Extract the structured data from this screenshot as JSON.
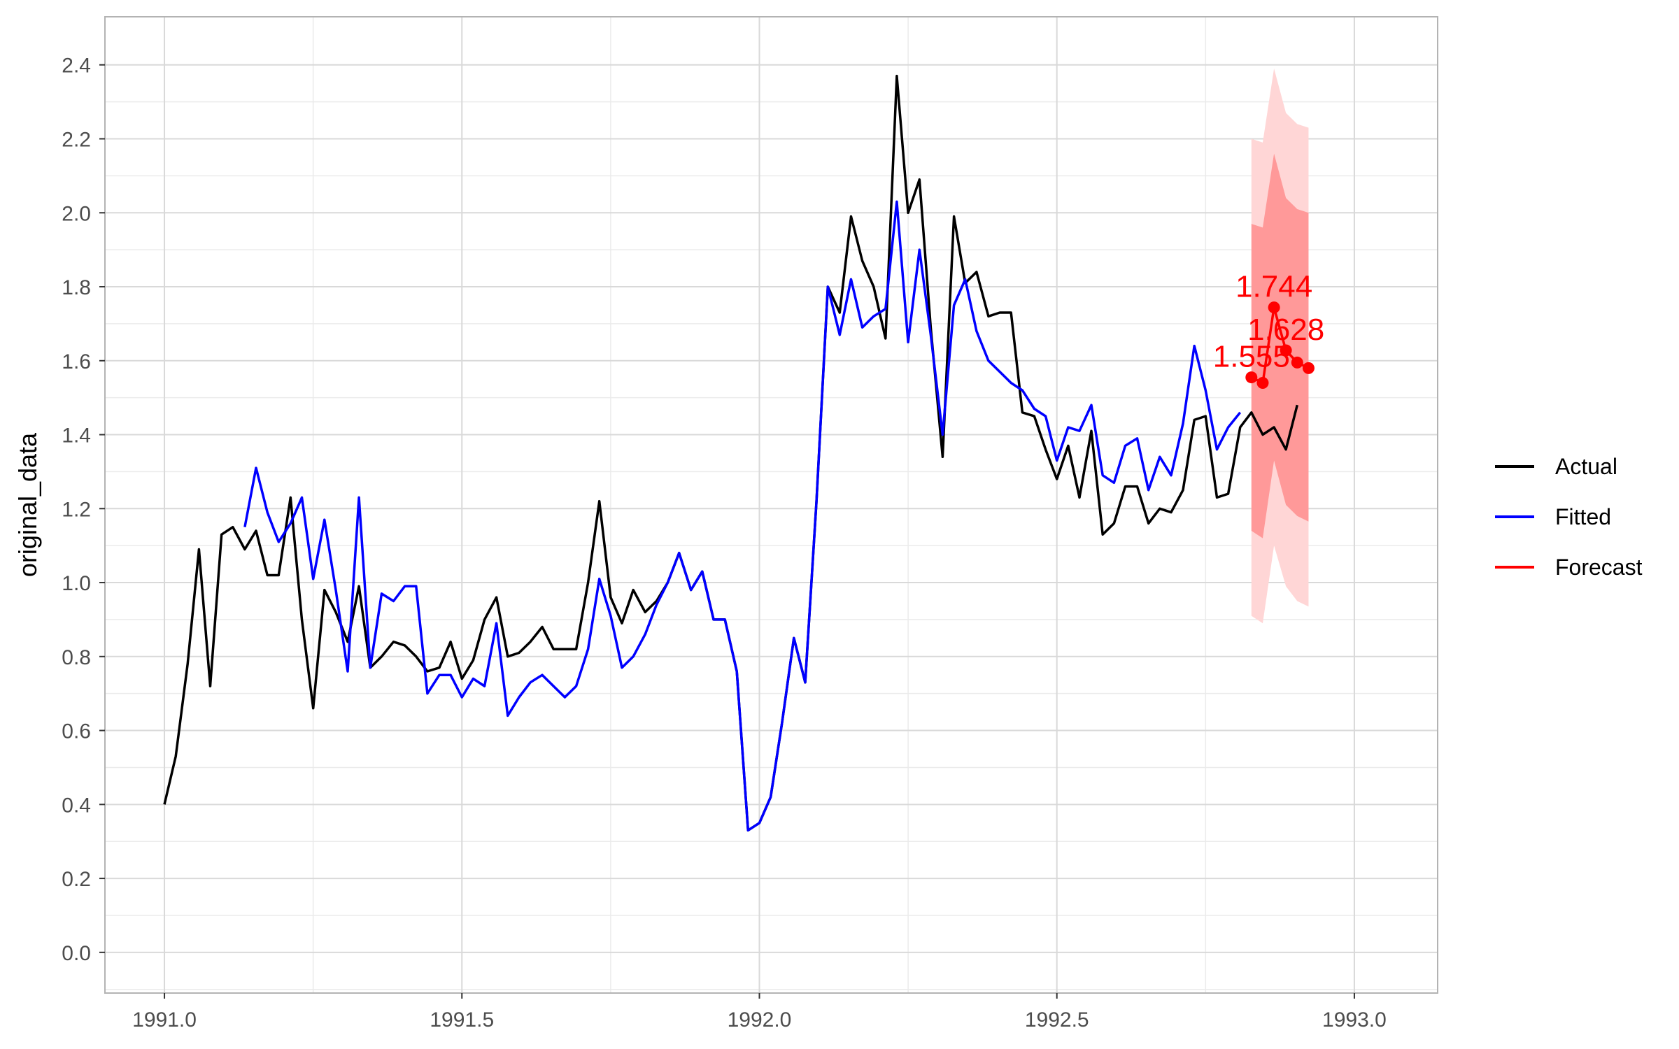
{
  "chart_data": {
    "type": "line",
    "title": "",
    "xlabel": "",
    "ylabel": "original_data",
    "xlim": [
      1990.9,
      1993.14
    ],
    "ylim": [
      -0.11,
      2.53
    ],
    "grid": true,
    "x_ticks": [
      1991.0,
      1991.5,
      1992.0,
      1992.5,
      1993.0
    ],
    "x_tick_labels": [
      "1991.0",
      "1991.5",
      "1992.0",
      "1992.5",
      "1993.0"
    ],
    "y_ticks": [
      0.0,
      0.2,
      0.4,
      0.6,
      0.8,
      1.0,
      1.2,
      1.4,
      1.6,
      1.8,
      2.0,
      2.2,
      2.4
    ],
    "y_tick_labels": [
      "0.0",
      "0.2",
      "0.4",
      "0.6",
      "0.8",
      "1.0",
      "1.2",
      "1.4",
      "1.6",
      "1.8",
      "2.0",
      "2.2",
      "2.4"
    ],
    "legend": {
      "position": "right",
      "entries": [
        {
          "name": "Actual",
          "color": "#000000"
        },
        {
          "name": "Fitted",
          "color": "#0000ff"
        },
        {
          "name": "Forecast",
          "color": "#ff0000"
        }
      ]
    },
    "colors": {
      "actual": "#000000",
      "fitted": "#0000ff",
      "forecast": "#ff0000",
      "ci80": "#ff9999",
      "ci95": "#ffd6d6"
    },
    "series": [
      {
        "name": "Actual",
        "points": [
          [
            1991.0,
            0.4
          ],
          [
            1991.019,
            0.53
          ],
          [
            1991.039,
            0.78
          ],
          [
            1991.058,
            1.09
          ],
          [
            1991.077,
            0.72
          ],
          [
            1991.096,
            1.13
          ],
          [
            1991.115,
            1.15
          ],
          [
            1991.135,
            1.09
          ],
          [
            1991.154,
            1.14
          ],
          [
            1991.173,
            1.02
          ],
          [
            1991.192,
            1.02
          ],
          [
            1991.212,
            1.23
          ],
          [
            1991.231,
            0.9
          ],
          [
            1991.25,
            0.66
          ],
          [
            1991.269,
            0.98
          ],
          [
            1991.288,
            0.92
          ],
          [
            1991.308,
            0.84
          ],
          [
            1991.327,
            0.99
          ],
          [
            1991.346,
            0.77
          ],
          [
            1991.365,
            0.8
          ],
          [
            1991.385,
            0.84
          ],
          [
            1991.404,
            0.83
          ],
          [
            1991.423,
            0.8
          ],
          [
            1991.442,
            0.76
          ],
          [
            1991.462,
            0.77
          ],
          [
            1991.481,
            0.84
          ],
          [
            1991.5,
            0.74
          ],
          [
            1991.519,
            0.79
          ],
          [
            1991.538,
            0.9
          ],
          [
            1991.558,
            0.96
          ],
          [
            1991.577,
            0.8
          ],
          [
            1991.596,
            0.81
          ],
          [
            1991.615,
            0.84
          ],
          [
            1991.635,
            0.88
          ],
          [
            1991.654,
            0.82
          ],
          [
            1991.673,
            0.82
          ],
          [
            1991.692,
            0.82
          ],
          [
            1991.712,
            1.0
          ],
          [
            1991.731,
            1.22
          ],
          [
            1991.75,
            0.96
          ],
          [
            1991.769,
            0.89
          ],
          [
            1991.788,
            0.98
          ],
          [
            1991.808,
            0.92
          ],
          [
            1991.827,
            0.95
          ],
          [
            1991.846,
            1.0
          ],
          [
            1991.865,
            1.08
          ],
          [
            1991.885,
            0.98
          ],
          [
            1991.904,
            1.03
          ],
          [
            1991.923,
            0.9
          ],
          [
            1991.942,
            0.9
          ],
          [
            1991.962,
            0.76
          ],
          [
            1991.981,
            0.33
          ],
          [
            1992.0,
            0.35
          ],
          [
            1992.019,
            0.42
          ],
          [
            1992.038,
            0.62
          ],
          [
            1992.058,
            0.85
          ],
          [
            1992.077,
            0.73
          ],
          [
            1992.096,
            1.22
          ],
          [
            1992.115,
            1.8
          ],
          [
            1992.135,
            1.73
          ],
          [
            1992.154,
            1.99
          ],
          [
            1992.173,
            1.87
          ],
          [
            1992.192,
            1.8
          ],
          [
            1992.212,
            1.66
          ],
          [
            1992.231,
            2.37
          ],
          [
            1992.25,
            2.0
          ],
          [
            1992.269,
            2.09
          ],
          [
            1992.288,
            1.69
          ],
          [
            1992.308,
            1.34
          ],
          [
            1992.327,
            1.99
          ],
          [
            1992.346,
            1.81
          ],
          [
            1992.365,
            1.84
          ],
          [
            1992.385,
            1.72
          ],
          [
            1992.404,
            1.73
          ],
          [
            1992.423,
            1.73
          ],
          [
            1992.442,
            1.46
          ],
          [
            1992.462,
            1.45
          ],
          [
            1992.481,
            1.36
          ],
          [
            1992.5,
            1.28
          ],
          [
            1992.519,
            1.37
          ],
          [
            1992.538,
            1.23
          ],
          [
            1992.558,
            1.41
          ],
          [
            1992.577,
            1.13
          ],
          [
            1992.596,
            1.16
          ],
          [
            1992.615,
            1.26
          ],
          [
            1992.635,
            1.26
          ],
          [
            1992.654,
            1.16
          ],
          [
            1992.673,
            1.2
          ],
          [
            1992.692,
            1.19
          ],
          [
            1992.712,
            1.25
          ],
          [
            1992.731,
            1.44
          ],
          [
            1992.75,
            1.45
          ],
          [
            1992.769,
            1.23
          ],
          [
            1992.788,
            1.24
          ],
          [
            1992.808,
            1.42
          ],
          [
            1992.827,
            1.46
          ],
          [
            1992.846,
            1.4
          ],
          [
            1992.865,
            1.42
          ],
          [
            1992.885,
            1.36
          ],
          [
            1992.904,
            1.48
          ]
        ]
      },
      {
        "name": "Fitted",
        "points": [
          [
            1991.135,
            1.15
          ],
          [
            1991.154,
            1.31
          ],
          [
            1991.173,
            1.19
          ],
          [
            1991.192,
            1.11
          ],
          [
            1991.212,
            1.16
          ],
          [
            1991.231,
            1.23
          ],
          [
            1991.25,
            1.01
          ],
          [
            1991.269,
            1.17
          ],
          [
            1991.288,
            0.98
          ],
          [
            1991.308,
            0.76
          ],
          [
            1991.327,
            1.23
          ],
          [
            1991.346,
            0.77
          ],
          [
            1991.365,
            0.97
          ],
          [
            1991.385,
            0.95
          ],
          [
            1991.404,
            0.99
          ],
          [
            1991.423,
            0.99
          ],
          [
            1991.442,
            0.7
          ],
          [
            1991.462,
            0.75
          ],
          [
            1991.481,
            0.75
          ],
          [
            1991.5,
            0.69
          ],
          [
            1991.519,
            0.74
          ],
          [
            1991.538,
            0.72
          ],
          [
            1991.558,
            0.89
          ],
          [
            1991.577,
            0.64
          ],
          [
            1991.596,
            0.69
          ],
          [
            1991.615,
            0.73
          ],
          [
            1991.635,
            0.75
          ],
          [
            1991.654,
            0.72
          ],
          [
            1991.673,
            0.69
          ],
          [
            1991.692,
            0.72
          ],
          [
            1991.712,
            0.82
          ],
          [
            1991.731,
            1.01
          ],
          [
            1991.75,
            0.91
          ],
          [
            1991.769,
            0.77
          ],
          [
            1991.788,
            0.8
          ],
          [
            1991.808,
            0.86
          ],
          [
            1991.827,
            0.94
          ],
          [
            1991.846,
            1.0
          ],
          [
            1991.865,
            1.08
          ],
          [
            1991.885,
            0.98
          ],
          [
            1991.904,
            1.03
          ],
          [
            1991.923,
            0.9
          ],
          [
            1991.942,
            0.9
          ],
          [
            1991.962,
            0.76
          ],
          [
            1991.981,
            0.33
          ],
          [
            1992.0,
            0.35
          ],
          [
            1992.019,
            0.42
          ],
          [
            1992.038,
            0.62
          ],
          [
            1992.058,
            0.85
          ],
          [
            1992.077,
            0.73
          ],
          [
            1992.096,
            1.22
          ],
          [
            1992.115,
            1.8
          ],
          [
            1992.135,
            1.67
          ],
          [
            1992.154,
            1.82
          ],
          [
            1992.173,
            1.69
          ],
          [
            1992.192,
            1.72
          ],
          [
            1992.212,
            1.74
          ],
          [
            1992.231,
            2.03
          ],
          [
            1992.25,
            1.65
          ],
          [
            1992.269,
            1.9
          ],
          [
            1992.288,
            1.67
          ],
          [
            1992.308,
            1.4
          ],
          [
            1992.327,
            1.75
          ],
          [
            1992.346,
            1.82
          ],
          [
            1992.365,
            1.68
          ],
          [
            1992.385,
            1.6
          ],
          [
            1992.404,
            1.57
          ],
          [
            1992.423,
            1.54
          ],
          [
            1992.442,
            1.52
          ],
          [
            1992.462,
            1.47
          ],
          [
            1992.481,
            1.45
          ],
          [
            1992.5,
            1.33
          ],
          [
            1992.519,
            1.42
          ],
          [
            1992.538,
            1.41
          ],
          [
            1992.558,
            1.48
          ],
          [
            1992.577,
            1.29
          ],
          [
            1992.596,
            1.27
          ],
          [
            1992.615,
            1.37
          ],
          [
            1992.635,
            1.39
          ],
          [
            1992.654,
            1.25
          ],
          [
            1992.673,
            1.34
          ],
          [
            1992.692,
            1.29
          ],
          [
            1992.712,
            1.43
          ],
          [
            1992.731,
            1.64
          ],
          [
            1992.75,
            1.52
          ],
          [
            1992.769,
            1.36
          ],
          [
            1992.788,
            1.42
          ],
          [
            1992.808,
            1.46
          ]
        ]
      },
      {
        "name": "Forecast",
        "points": [
          [
            1992.827,
            1.555
          ],
          [
            1992.846,
            1.54
          ],
          [
            1992.865,
            1.744
          ],
          [
            1992.885,
            1.628
          ],
          [
            1992.904,
            1.595
          ],
          [
            1992.923,
            1.58
          ]
        ],
        "labels": [
          {
            "x": 1992.827,
            "y": 1.555,
            "text": "1.555"
          },
          {
            "x": 1992.865,
            "y": 1.744,
            "text": "1.744"
          },
          {
            "x": 1992.885,
            "y": 1.628,
            "text": "1.628"
          }
        ]
      }
    ],
    "intervals": [
      {
        "level": "80%",
        "x": [
          1992.827,
          1992.846,
          1992.865,
          1992.885,
          1992.904,
          1992.923
        ],
        "lower": [
          1.14,
          1.12,
          1.33,
          1.21,
          1.18,
          1.165
        ],
        "upper": [
          1.97,
          1.96,
          2.16,
          2.04,
          2.01,
          2.0
        ]
      },
      {
        "level": "95%",
        "x": [
          1992.827,
          1992.846,
          1992.865,
          1992.885,
          1992.904,
          1992.923
        ],
        "lower": [
          0.91,
          0.89,
          1.1,
          0.99,
          0.95,
          0.935
        ],
        "upper": [
          2.2,
          2.19,
          2.39,
          2.27,
          2.24,
          2.23
        ]
      }
    ]
  }
}
